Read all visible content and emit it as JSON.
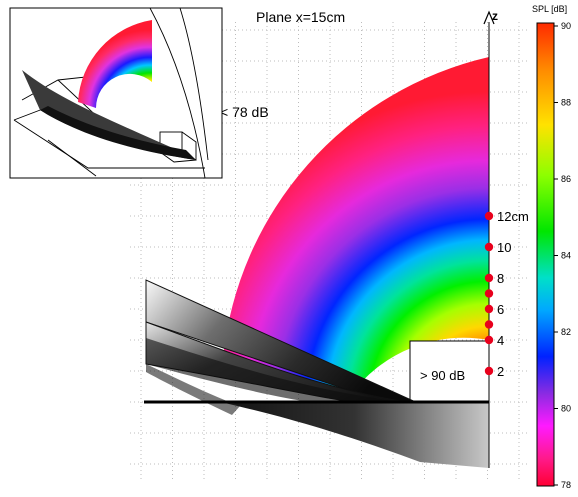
{
  "title": "Plane x=15cm",
  "axis": {
    "label": "z",
    "ticks": [
      {
        "value": 12,
        "label": "12cm"
      },
      {
        "value": 10,
        "label": "10"
      },
      {
        "value": 8,
        "label": "8"
      },
      {
        "value": 6,
        "label": "6"
      },
      {
        "value": 4,
        "label": "4"
      },
      {
        "value": 2,
        "label": "2"
      }
    ],
    "markers_cm": [
      12,
      10,
      8,
      7,
      6,
      5,
      4,
      2
    ]
  },
  "annotations": {
    "low": "< 78 dB",
    "high": "> 90 dB"
  },
  "colorbar": {
    "title": "SPL [dB]",
    "min": 78,
    "max": 90,
    "ticks": [
      "90",
      "88",
      "86",
      "84",
      "82",
      "80",
      "78"
    ]
  },
  "colors": {
    "marker": "#e8001c",
    "grid": "#bdbdbd"
  }
}
